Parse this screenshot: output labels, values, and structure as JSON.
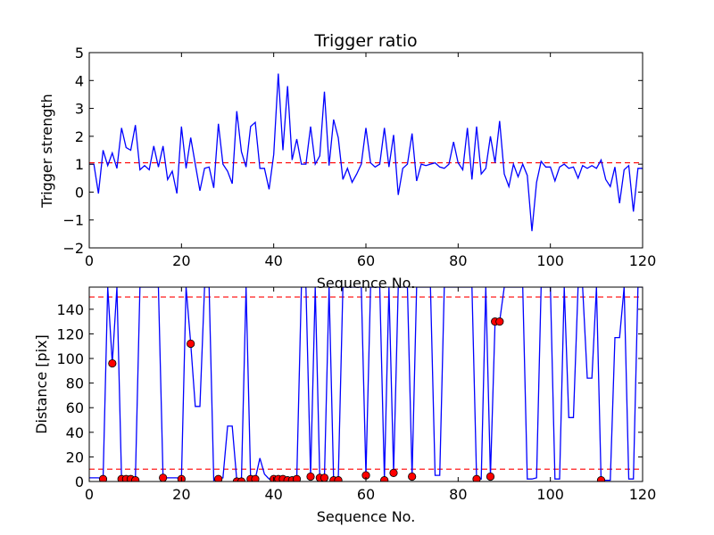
{
  "chart_data": [
    {
      "type": "line",
      "title": "Trigger ratio",
      "xlabel": "Sequence No.",
      "ylabel": "Trigger strength",
      "xlim": [
        0,
        120
      ],
      "ylim": [
        -2,
        5
      ],
      "xticks": [
        0,
        20,
        40,
        60,
        80,
        100,
        120
      ],
      "yticks": [
        -2,
        -1,
        0,
        1,
        2,
        3,
        4,
        5
      ],
      "grid": false,
      "series": [
        {
          "color": "#0000ff",
          "x": [
            0,
            1,
            2,
            3,
            4,
            5,
            6,
            7,
            8,
            9,
            10,
            11,
            12,
            13,
            14,
            15,
            16,
            17,
            18,
            19,
            20,
            21,
            22,
            23,
            24,
            25,
            26,
            27,
            28,
            29,
            30,
            31,
            32,
            33,
            34,
            35,
            36,
            37,
            38,
            39,
            40,
            41,
            42,
            43,
            44,
            45,
            46,
            47,
            48,
            49,
            50,
            51,
            52,
            53,
            54,
            55,
            56,
            57,
            58,
            59,
            60,
            61,
            62,
            63,
            64,
            65,
            66,
            67,
            68,
            69,
            70,
            71,
            72,
            73,
            74,
            75,
            76,
            77,
            78,
            79,
            80,
            81,
            82,
            83,
            84,
            85,
            86,
            87,
            88,
            89,
            90,
            91,
            92,
            93,
            94,
            95,
            96,
            97,
            98,
            99,
            100,
            101,
            102,
            103,
            104,
            105,
            106,
            107,
            108,
            109,
            110,
            111,
            112,
            113,
            114,
            115,
            116,
            117,
            118,
            119,
            120
          ],
          "y": [
            1.0,
            1.0,
            -0.05,
            1.5,
            0.95,
            1.4,
            0.85,
            2.3,
            1.6,
            1.5,
            2.4,
            0.8,
            0.95,
            0.8,
            1.65,
            0.9,
            1.65,
            0.45,
            0.75,
            -0.05,
            2.35,
            0.85,
            1.95,
            1.0,
            0.05,
            0.85,
            0.9,
            0.15,
            2.45,
            1.0,
            0.75,
            0.3,
            2.9,
            1.45,
            0.9,
            2.35,
            2.5,
            0.85,
            0.85,
            0.1,
            1.35,
            4.25,
            1.5,
            3.8,
            1.15,
            1.9,
            1.0,
            1.0,
            2.35,
            1.0,
            1.3,
            3.6,
            0.95,
            2.6,
            1.95,
            0.45,
            0.85,
            0.35,
            0.65,
            1.0,
            2.3,
            1.05,
            0.9,
            1.0,
            2.3,
            0.9,
            2.05,
            -0.1,
            0.85,
            1.0,
            2.1,
            0.4,
            1.0,
            0.95,
            1.0,
            1.05,
            0.9,
            0.85,
            1.0,
            1.8,
            1.05,
            0.8,
            2.3,
            0.45,
            2.35,
            0.65,
            0.85,
            2.0,
            1.05,
            2.55,
            0.65,
            0.2,
            1.0,
            0.55,
            1.0,
            0.6,
            -1.4,
            0.35,
            1.1,
            0.9,
            0.9,
            0.4,
            0.9,
            1.0,
            0.85,
            0.9,
            0.5,
            0.95,
            0.85,
            0.95,
            0.85,
            1.15,
            0.45,
            0.2,
            0.9,
            -0.4,
            0.8,
            0.95,
            -0.7,
            0.85,
            0.85
          ]
        }
      ],
      "reference_lines": [
        {
          "axis": "y",
          "value": 1.05,
          "color": "#ff0000",
          "style": "dashed"
        }
      ]
    },
    {
      "type": "line",
      "title": "",
      "xlabel": "Sequence No.",
      "ylabel": "Distance [pix]",
      "xlim": [
        0,
        120
      ],
      "ylim": [
        0,
        158
      ],
      "xticks": [
        0,
        20,
        40,
        60,
        80,
        100,
        120
      ],
      "yticks": [
        0,
        20,
        40,
        60,
        80,
        100,
        120,
        140
      ],
      "grid": false,
      "series": [
        {
          "color": "#0000ff",
          "x": [
            0,
            1,
            2,
            3,
            4,
            5,
            6,
            7,
            8,
            9,
            10,
            11,
            12,
            13,
            14,
            15,
            16,
            17,
            18,
            19,
            20,
            21,
            22,
            23,
            24,
            25,
            26,
            27,
            28,
            29,
            30,
            31,
            32,
            33,
            34,
            35,
            36,
            37,
            38,
            39,
            40,
            41,
            42,
            43,
            44,
            45,
            46,
            47,
            48,
            49,
            50,
            51,
            52,
            53,
            54,
            55,
            56,
            57,
            58,
            59,
            60,
            61,
            62,
            63,
            64,
            65,
            66,
            67,
            68,
            69,
            70,
            71,
            72,
            73,
            74,
            75,
            76,
            77,
            78,
            79,
            80,
            81,
            82,
            83,
            84,
            85,
            86,
            87,
            88,
            89,
            90,
            91,
            92,
            93,
            94,
            95,
            96,
            97,
            98,
            99,
            100,
            101,
            102,
            103,
            104,
            105,
            106,
            107,
            108,
            109,
            110,
            111,
            112,
            113,
            114,
            115,
            116,
            117,
            118,
            119,
            120
          ],
          "y": [
            3,
            3,
            3,
            2,
            158,
            96,
            158,
            2,
            2,
            2,
            2,
            158,
            158,
            158,
            158,
            158,
            3,
            3,
            3,
            3,
            2,
            158,
            112,
            61,
            61,
            158,
            158,
            1,
            2,
            3,
            45,
            45,
            1,
            1,
            158,
            2,
            2,
            19,
            6,
            2,
            2,
            2,
            2,
            1,
            1,
            2,
            158,
            158,
            4,
            158,
            3,
            3,
            158,
            1,
            1,
            158,
            158,
            158,
            158,
            158,
            5,
            158,
            158,
            158,
            2,
            158,
            7,
            158,
            158,
            158,
            4,
            158,
            158,
            158,
            158,
            5,
            5,
            158,
            158,
            158,
            158,
            158,
            158,
            158,
            2,
            2,
            158,
            4,
            130,
            130,
            158,
            158,
            158,
            158,
            158,
            2,
            2,
            3,
            158,
            158,
            158,
            2,
            2,
            158,
            52,
            52,
            158,
            158,
            84,
            84,
            158,
            1,
            1,
            1,
            117,
            117,
            158,
            2,
            2,
            158,
            158
          ]
        },
        {
          "type": "scatter",
          "color": "#ff0000",
          "x": [
            3,
            5,
            7,
            8,
            9,
            10,
            16,
            20,
            22,
            28,
            32,
            33,
            35,
            36,
            40,
            41,
            42,
            43,
            44,
            45,
            48,
            50,
            51,
            53,
            54,
            60,
            64,
            66,
            70,
            84,
            87,
            88,
            89,
            111
          ],
          "y": [
            2,
            96,
            2,
            2,
            2,
            1,
            3,
            2,
            112,
            2,
            0,
            0,
            2,
            2,
            2,
            2,
            2,
            1,
            1,
            2,
            4,
            3,
            3,
            1,
            1,
            5,
            1,
            7,
            4,
            2,
            4,
            130,
            130,
            1
          ]
        }
      ],
      "reference_lines": [
        {
          "axis": "y",
          "value": 150,
          "color": "#ff0000",
          "style": "dashed"
        },
        {
          "axis": "y",
          "value": 10,
          "color": "#ff0000",
          "style": "dashed"
        }
      ]
    }
  ]
}
